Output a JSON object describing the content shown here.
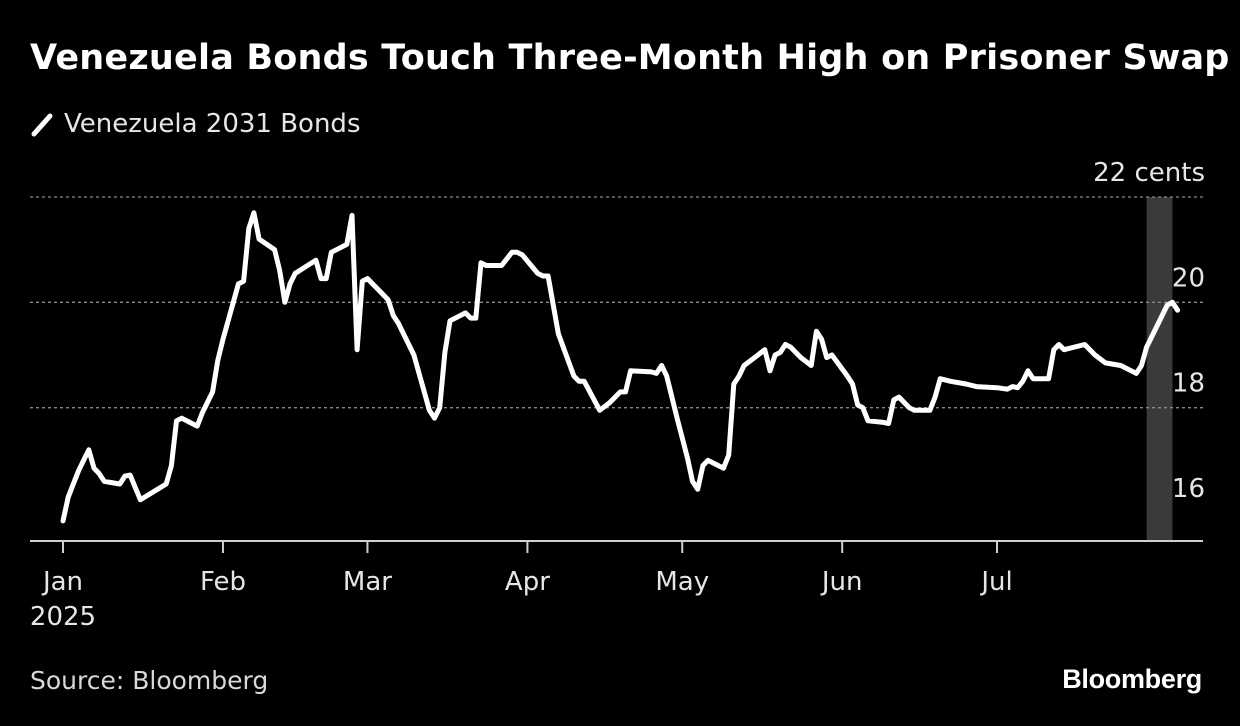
{
  "header": {
    "title": "Venezuela Bonds Touch Three-Month High on Prisoner Swap",
    "legend_label": "Venezuela 2031 Bonds"
  },
  "footer": {
    "source": "Source: Bloomberg",
    "brand": "Bloomberg"
  },
  "colors": {
    "background": "#000000",
    "line": "#ffffff",
    "highlight_band": "#3a3a3a",
    "grid": "#8a8a8a",
    "text": "#ffffff"
  },
  "chart_data": {
    "type": "line",
    "title": "Venezuela Bonds Touch Three-Month High on Prisoner Swap",
    "series": [
      {
        "name": "Venezuela 2031 Bonds",
        "points": [
          [
            "2025-01-01",
            15.85
          ],
          [
            "2025-01-02",
            16.3
          ],
          [
            "2025-01-03",
            16.55
          ],
          [
            "2025-01-04",
            16.8
          ],
          [
            "2025-01-05",
            17.0
          ],
          [
            "2025-01-06",
            17.2
          ],
          [
            "2025-01-07",
            16.85
          ],
          [
            "2025-01-08",
            16.75
          ],
          [
            "2025-01-09",
            16.6
          ],
          [
            "2025-01-12",
            16.55
          ],
          [
            "2025-01-13",
            16.7
          ],
          [
            "2025-01-14",
            16.72
          ],
          [
            "2025-01-16",
            16.25
          ],
          [
            "2025-01-21",
            16.55
          ],
          [
            "2025-01-22",
            16.9
          ],
          [
            "2025-01-23",
            17.75
          ],
          [
            "2025-01-24",
            17.8
          ],
          [
            "2025-01-27",
            17.65
          ],
          [
            "2025-01-28",
            17.9
          ],
          [
            "2025-01-30",
            18.3
          ],
          [
            "2025-01-31",
            18.9
          ],
          [
            "2025-02-01",
            19.3
          ],
          [
            "2025-02-03",
            20.0
          ],
          [
            "2025-02-04",
            20.35
          ],
          [
            "2025-02-05",
            20.4
          ],
          [
            "2025-02-06",
            21.4
          ],
          [
            "2025-02-07",
            21.7
          ],
          [
            "2025-02-08",
            21.2
          ],
          [
            "2025-02-11",
            21.0
          ],
          [
            "2025-02-12",
            20.6
          ],
          [
            "2025-02-13",
            20.0
          ],
          [
            "2025-02-14",
            20.35
          ],
          [
            "2025-02-15",
            20.55
          ],
          [
            "2025-02-19",
            20.8
          ],
          [
            "2025-02-20",
            20.45
          ],
          [
            "2025-02-21",
            20.45
          ],
          [
            "2025-02-22",
            20.95
          ],
          [
            "2025-02-23",
            21.0
          ],
          [
            "2025-02-25",
            21.1
          ],
          [
            "2025-02-26",
            21.65
          ],
          [
            "2025-02-27",
            19.1
          ],
          [
            "2025-02-28",
            20.4
          ],
          [
            "2025-03-01",
            20.45
          ],
          [
            "2025-03-04",
            20.15
          ],
          [
            "2025-03-05",
            20.05
          ],
          [
            "2025-03-06",
            19.75
          ],
          [
            "2025-03-07",
            19.6
          ],
          [
            "2025-03-10",
            19.0
          ],
          [
            "2025-03-13",
            17.95
          ],
          [
            "2025-03-14",
            17.8
          ],
          [
            "2025-03-15",
            18.0
          ],
          [
            "2025-03-16",
            19.05
          ],
          [
            "2025-03-17",
            19.65
          ],
          [
            "2025-03-20",
            19.8
          ],
          [
            "2025-03-21",
            19.7
          ],
          [
            "2025-03-22",
            19.7
          ],
          [
            "2025-03-23",
            20.75
          ],
          [
            "2025-03-24",
            20.7
          ],
          [
            "2025-03-27",
            20.7
          ],
          [
            "2025-03-29",
            20.95
          ],
          [
            "2025-03-30",
            20.95
          ],
          [
            "2025-03-31",
            20.9
          ],
          [
            "2025-04-03",
            20.55
          ],
          [
            "2025-04-04",
            20.5
          ],
          [
            "2025-04-05",
            20.5
          ],
          [
            "2025-04-07",
            19.4
          ],
          [
            "2025-04-10",
            18.6
          ],
          [
            "2025-04-11",
            18.5
          ],
          [
            "2025-04-12",
            18.5
          ],
          [
            "2025-04-15",
            17.95
          ],
          [
            "2025-04-17",
            18.1
          ],
          [
            "2025-04-19",
            18.3
          ],
          [
            "2025-04-20",
            18.3
          ],
          [
            "2025-04-21",
            18.7
          ],
          [
            "2025-04-25",
            18.68
          ],
          [
            "2025-04-26",
            18.65
          ],
          [
            "2025-04-27",
            18.8
          ],
          [
            "2025-04-28",
            18.6
          ],
          [
            "2025-04-30",
            17.8
          ],
          [
            "2025-05-02",
            17.05
          ],
          [
            "2025-05-03",
            16.6
          ],
          [
            "2025-05-04",
            16.45
          ],
          [
            "2025-05-05",
            16.9
          ],
          [
            "2025-05-06",
            17.0
          ],
          [
            "2025-05-08",
            16.9
          ],
          [
            "2025-05-09",
            16.85
          ],
          [
            "2025-05-10",
            17.1
          ],
          [
            "2025-05-11",
            18.45
          ],
          [
            "2025-05-12",
            18.6
          ],
          [
            "2025-05-13",
            18.8
          ],
          [
            "2025-05-15",
            18.95
          ],
          [
            "2025-05-17",
            19.1
          ],
          [
            "2025-05-18",
            18.7
          ],
          [
            "2025-05-19",
            19.0
          ],
          [
            "2025-05-20",
            19.05
          ],
          [
            "2025-05-21",
            19.2
          ],
          [
            "2025-05-22",
            19.15
          ],
          [
            "2025-05-24",
            18.95
          ],
          [
            "2025-05-26",
            18.8
          ],
          [
            "2025-05-27",
            19.45
          ],
          [
            "2025-05-28",
            19.3
          ],
          [
            "2025-05-29",
            18.95
          ],
          [
            "2025-05-30",
            19.0
          ],
          [
            "2025-06-02",
            18.6
          ],
          [
            "2025-06-03",
            18.45
          ],
          [
            "2025-06-04",
            18.05
          ],
          [
            "2025-06-05",
            18.0
          ],
          [
            "2025-06-06",
            17.75
          ],
          [
            "2025-06-09",
            17.72
          ],
          [
            "2025-06-10",
            17.7
          ],
          [
            "2025-06-11",
            18.15
          ],
          [
            "2025-06-12",
            18.2
          ],
          [
            "2025-06-14",
            18.0
          ],
          [
            "2025-06-15",
            17.95
          ],
          [
            "2025-06-18",
            17.95
          ],
          [
            "2025-06-19",
            18.2
          ],
          [
            "2025-06-20",
            18.55
          ],
          [
            "2025-06-22",
            18.5
          ],
          [
            "2025-06-25",
            18.45
          ],
          [
            "2025-06-27",
            18.4
          ],
          [
            "2025-07-01",
            18.38
          ],
          [
            "2025-07-03",
            18.35
          ],
          [
            "2025-07-04",
            18.4
          ],
          [
            "2025-07-05",
            18.38
          ],
          [
            "2025-07-06",
            18.5
          ],
          [
            "2025-07-07",
            18.7
          ],
          [
            "2025-07-08",
            18.55
          ],
          [
            "2025-07-11",
            18.55
          ],
          [
            "2025-07-12",
            19.1
          ],
          [
            "2025-07-13",
            19.2
          ],
          [
            "2025-07-14",
            19.1
          ],
          [
            "2025-07-18",
            19.2
          ],
          [
            "2025-07-20",
            19.0
          ],
          [
            "2025-07-22",
            18.85
          ],
          [
            "2025-07-25",
            18.8
          ],
          [
            "2025-07-27",
            18.7
          ],
          [
            "2025-07-28",
            18.65
          ],
          [
            "2025-07-29",
            18.8
          ],
          [
            "2025-07-30",
            19.15
          ],
          [
            "2025-08-01",
            19.55
          ],
          [
            "2025-08-03",
            19.95
          ],
          [
            "2025-08-04",
            20.0
          ],
          [
            "2025-08-05",
            19.85
          ]
        ]
      }
    ],
    "x_ticks": [
      {
        "date": "2025-01-01",
        "label": "Jan",
        "sublabel": "2025"
      },
      {
        "date": "2025-02-01",
        "label": "Feb",
        "sublabel": ""
      },
      {
        "date": "2025-03-01",
        "label": "Mar",
        "sublabel": ""
      },
      {
        "date": "2025-04-01",
        "label": "Apr",
        "sublabel": ""
      },
      {
        "date": "2025-05-01",
        "label": "May",
        "sublabel": ""
      },
      {
        "date": "2025-06-01",
        "label": "Jun",
        "sublabel": ""
      },
      {
        "date": "2025-07-01",
        "label": "Jul",
        "sublabel": ""
      }
    ],
    "x_range": [
      "2024-12-25",
      "2025-08-15"
    ],
    "y_ticks": [
      {
        "value": 16,
        "label": "16"
      },
      {
        "value": 18,
        "label": "18"
      },
      {
        "value": 20,
        "label": "20"
      },
      {
        "value": 22,
        "label": "22 cents"
      }
    ],
    "ylim": [
      15.5,
      22
    ],
    "grid": true,
    "highlight": {
      "start": "2025-07-30",
      "end": "2025-08-04"
    }
  }
}
